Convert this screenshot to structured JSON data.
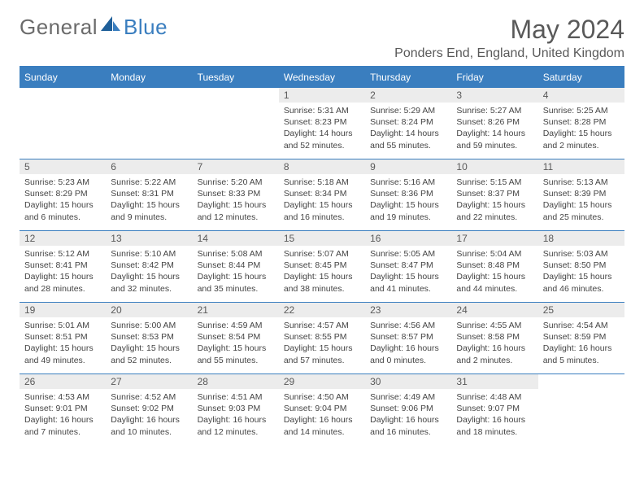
{
  "brand": {
    "part1": "General",
    "part2": "Blue"
  },
  "title": "May 2024",
  "location": "Ponders End, England, United Kingdom",
  "colors": {
    "header_bg": "#3a7ebf",
    "daynum_bg": "#ececec",
    "text_gray": "#595959"
  },
  "weekdays": [
    "Sunday",
    "Monday",
    "Tuesday",
    "Wednesday",
    "Thursday",
    "Friday",
    "Saturday"
  ],
  "weeks": [
    [
      null,
      null,
      null,
      {
        "day": "1",
        "sunrise": "Sunrise: 5:31 AM",
        "sunset": "Sunset: 8:23 PM",
        "daylight": "Daylight: 14 hours and 52 minutes."
      },
      {
        "day": "2",
        "sunrise": "Sunrise: 5:29 AM",
        "sunset": "Sunset: 8:24 PM",
        "daylight": "Daylight: 14 hours and 55 minutes."
      },
      {
        "day": "3",
        "sunrise": "Sunrise: 5:27 AM",
        "sunset": "Sunset: 8:26 PM",
        "daylight": "Daylight: 14 hours and 59 minutes."
      },
      {
        "day": "4",
        "sunrise": "Sunrise: 5:25 AM",
        "sunset": "Sunset: 8:28 PM",
        "daylight": "Daylight: 15 hours and 2 minutes."
      }
    ],
    [
      {
        "day": "5",
        "sunrise": "Sunrise: 5:23 AM",
        "sunset": "Sunset: 8:29 PM",
        "daylight": "Daylight: 15 hours and 6 minutes."
      },
      {
        "day": "6",
        "sunrise": "Sunrise: 5:22 AM",
        "sunset": "Sunset: 8:31 PM",
        "daylight": "Daylight: 15 hours and 9 minutes."
      },
      {
        "day": "7",
        "sunrise": "Sunrise: 5:20 AM",
        "sunset": "Sunset: 8:33 PM",
        "daylight": "Daylight: 15 hours and 12 minutes."
      },
      {
        "day": "8",
        "sunrise": "Sunrise: 5:18 AM",
        "sunset": "Sunset: 8:34 PM",
        "daylight": "Daylight: 15 hours and 16 minutes."
      },
      {
        "day": "9",
        "sunrise": "Sunrise: 5:16 AM",
        "sunset": "Sunset: 8:36 PM",
        "daylight": "Daylight: 15 hours and 19 minutes."
      },
      {
        "day": "10",
        "sunrise": "Sunrise: 5:15 AM",
        "sunset": "Sunset: 8:37 PM",
        "daylight": "Daylight: 15 hours and 22 minutes."
      },
      {
        "day": "11",
        "sunrise": "Sunrise: 5:13 AM",
        "sunset": "Sunset: 8:39 PM",
        "daylight": "Daylight: 15 hours and 25 minutes."
      }
    ],
    [
      {
        "day": "12",
        "sunrise": "Sunrise: 5:12 AM",
        "sunset": "Sunset: 8:41 PM",
        "daylight": "Daylight: 15 hours and 28 minutes."
      },
      {
        "day": "13",
        "sunrise": "Sunrise: 5:10 AM",
        "sunset": "Sunset: 8:42 PM",
        "daylight": "Daylight: 15 hours and 32 minutes."
      },
      {
        "day": "14",
        "sunrise": "Sunrise: 5:08 AM",
        "sunset": "Sunset: 8:44 PM",
        "daylight": "Daylight: 15 hours and 35 minutes."
      },
      {
        "day": "15",
        "sunrise": "Sunrise: 5:07 AM",
        "sunset": "Sunset: 8:45 PM",
        "daylight": "Daylight: 15 hours and 38 minutes."
      },
      {
        "day": "16",
        "sunrise": "Sunrise: 5:05 AM",
        "sunset": "Sunset: 8:47 PM",
        "daylight": "Daylight: 15 hours and 41 minutes."
      },
      {
        "day": "17",
        "sunrise": "Sunrise: 5:04 AM",
        "sunset": "Sunset: 8:48 PM",
        "daylight": "Daylight: 15 hours and 44 minutes."
      },
      {
        "day": "18",
        "sunrise": "Sunrise: 5:03 AM",
        "sunset": "Sunset: 8:50 PM",
        "daylight": "Daylight: 15 hours and 46 minutes."
      }
    ],
    [
      {
        "day": "19",
        "sunrise": "Sunrise: 5:01 AM",
        "sunset": "Sunset: 8:51 PM",
        "daylight": "Daylight: 15 hours and 49 minutes."
      },
      {
        "day": "20",
        "sunrise": "Sunrise: 5:00 AM",
        "sunset": "Sunset: 8:53 PM",
        "daylight": "Daylight: 15 hours and 52 minutes."
      },
      {
        "day": "21",
        "sunrise": "Sunrise: 4:59 AM",
        "sunset": "Sunset: 8:54 PM",
        "daylight": "Daylight: 15 hours and 55 minutes."
      },
      {
        "day": "22",
        "sunrise": "Sunrise: 4:57 AM",
        "sunset": "Sunset: 8:55 PM",
        "daylight": "Daylight: 15 hours and 57 minutes."
      },
      {
        "day": "23",
        "sunrise": "Sunrise: 4:56 AM",
        "sunset": "Sunset: 8:57 PM",
        "daylight": "Daylight: 16 hours and 0 minutes."
      },
      {
        "day": "24",
        "sunrise": "Sunrise: 4:55 AM",
        "sunset": "Sunset: 8:58 PM",
        "daylight": "Daylight: 16 hours and 2 minutes."
      },
      {
        "day": "25",
        "sunrise": "Sunrise: 4:54 AM",
        "sunset": "Sunset: 8:59 PM",
        "daylight": "Daylight: 16 hours and 5 minutes."
      }
    ],
    [
      {
        "day": "26",
        "sunrise": "Sunrise: 4:53 AM",
        "sunset": "Sunset: 9:01 PM",
        "daylight": "Daylight: 16 hours and 7 minutes."
      },
      {
        "day": "27",
        "sunrise": "Sunrise: 4:52 AM",
        "sunset": "Sunset: 9:02 PM",
        "daylight": "Daylight: 16 hours and 10 minutes."
      },
      {
        "day": "28",
        "sunrise": "Sunrise: 4:51 AM",
        "sunset": "Sunset: 9:03 PM",
        "daylight": "Daylight: 16 hours and 12 minutes."
      },
      {
        "day": "29",
        "sunrise": "Sunrise: 4:50 AM",
        "sunset": "Sunset: 9:04 PM",
        "daylight": "Daylight: 16 hours and 14 minutes."
      },
      {
        "day": "30",
        "sunrise": "Sunrise: 4:49 AM",
        "sunset": "Sunset: 9:06 PM",
        "daylight": "Daylight: 16 hours and 16 minutes."
      },
      {
        "day": "31",
        "sunrise": "Sunrise: 4:48 AM",
        "sunset": "Sunset: 9:07 PM",
        "daylight": "Daylight: 16 hours and 18 minutes."
      },
      null
    ]
  ]
}
